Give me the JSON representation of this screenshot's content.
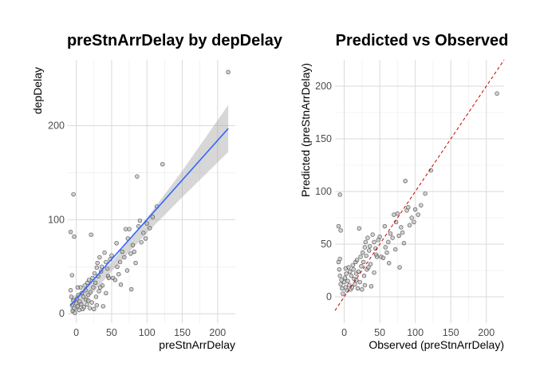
{
  "chart_data": [
    {
      "type": "scatter",
      "title": "preStnArrDelay by depDelay",
      "xlabel": "preStnArrDelay",
      "ylabel": "depDelay",
      "xlim": [
        -12,
        225
      ],
      "ylim": [
        -10,
        270
      ],
      "xticks": [
        0,
        50,
        100,
        150,
        200
      ],
      "yticks": [
        0,
        100,
        200
      ],
      "grid": true,
      "points": [
        [
          -8,
          87
        ],
        [
          -4,
          127
        ],
        [
          -3,
          82
        ],
        [
          -8,
          25
        ],
        [
          -7,
          18
        ],
        [
          -6,
          9
        ],
        [
          -5,
          3
        ],
        [
          -4,
          14
        ],
        [
          -3,
          6
        ],
        [
          -2,
          1
        ],
        [
          0,
          11
        ],
        [
          1,
          16
        ],
        [
          2,
          8
        ],
        [
          3,
          20
        ],
        [
          4,
          4
        ],
        [
          5,
          13
        ],
        [
          6,
          28
        ],
        [
          7,
          10
        ],
        [
          8,
          22
        ],
        [
          9,
          5
        ],
        [
          10,
          18
        ],
        [
          11,
          7
        ],
        [
          12,
          30
        ],
        [
          13,
          25
        ],
        [
          14,
          15
        ],
        [
          15,
          10
        ],
        [
          16,
          33
        ],
        [
          17,
          20
        ],
        [
          18,
          36
        ],
        [
          19,
          6
        ],
        [
          20,
          23
        ],
        [
          21,
          84
        ],
        [
          22,
          12
        ],
        [
          23,
          38
        ],
        [
          24,
          28
        ],
        [
          25,
          5
        ],
        [
          26,
          43
        ],
        [
          27,
          33
        ],
        [
          28,
          18
        ],
        [
          29,
          49
        ],
        [
          30,
          54
        ],
        [
          31,
          40
        ],
        [
          32,
          24
        ],
        [
          33,
          60
        ],
        [
          35,
          45
        ],
        [
          36,
          50
        ],
        [
          37,
          30
        ],
        [
          38,
          8
        ],
        [
          40,
          65
        ],
        [
          42,
          55
        ],
        [
          44,
          48
        ],
        [
          45,
          40
        ],
        [
          46,
          38
        ],
        [
          48,
          58
        ],
        [
          50,
          62
        ],
        [
          52,
          38
        ],
        [
          55,
          36
        ],
        [
          57,
          75
        ],
        [
          58,
          50
        ],
        [
          60,
          42
        ],
        [
          62,
          55
        ],
        [
          65,
          66
        ],
        [
          68,
          60
        ],
        [
          70,
          90
        ],
        [
          72,
          46
        ],
        [
          73,
          80
        ],
        [
          75,
          90
        ],
        [
          77,
          64
        ],
        [
          78,
          26
        ],
        [
          80,
          73
        ],
        [
          82,
          66
        ],
        [
          84,
          54
        ],
        [
          86,
          146
        ],
        [
          88,
          93
        ],
        [
          90,
          99
        ],
        [
          92,
          76
        ],
        [
          95,
          86
        ],
        [
          98,
          80
        ],
        [
          100,
          96
        ],
        [
          104,
          91
        ],
        [
          108,
          103
        ],
        [
          114,
          114
        ],
        [
          122,
          159
        ],
        [
          215,
          257
        ],
        [
          -6,
          41
        ],
        [
          2,
          28
        ],
        [
          17,
          14
        ],
        [
          34,
          28
        ],
        [
          42,
          22
        ],
        [
          63,
          31
        ],
        [
          29,
          9
        ]
      ],
      "fit_line": {
        "x": [
          -8,
          215
        ],
        "y": [
          9,
          197
        ]
      },
      "confidence_band": {
        "x": [
          -8,
          0,
          50,
          100,
          150,
          215
        ],
        "lower": [
          0,
          2,
          45,
          86,
          124,
          172
        ],
        "upper": [
          18,
          20,
          55,
          102,
          152,
          222
        ]
      }
    },
    {
      "type": "scatter",
      "title": "Predicted vs Observed",
      "xlabel": "Observed (preStnArrDelay)",
      "ylabel": "Predicted (preStnArrDelay)",
      "xlim": [
        -13,
        225
      ],
      "ylim": [
        -25,
        225
      ],
      "xticks": [
        0,
        50,
        100,
        150,
        200
      ],
      "yticks": [
        0,
        50,
        100,
        150,
        200
      ],
      "grid": true,
      "points": [
        [
          -8,
          67
        ],
        [
          -6,
          97
        ],
        [
          -5,
          63
        ],
        [
          -8,
          33
        ],
        [
          -7,
          26
        ],
        [
          -6,
          20
        ],
        [
          -5,
          12
        ],
        [
          -4,
          16
        ],
        [
          -3,
          8
        ],
        [
          -2,
          3
        ],
        [
          0,
          14
        ],
        [
          1,
          18
        ],
        [
          2,
          9
        ],
        [
          3,
          22
        ],
        [
          4,
          6
        ],
        [
          5,
          15
        ],
        [
          6,
          28
        ],
        [
          7,
          11
        ],
        [
          8,
          24
        ],
        [
          9,
          7
        ],
        [
          10,
          20
        ],
        [
          11,
          9
        ],
        [
          12,
          30
        ],
        [
          13,
          26
        ],
        [
          14,
          17
        ],
        [
          15,
          12
        ],
        [
          16,
          33
        ],
        [
          17,
          22
        ],
        [
          18,
          35
        ],
        [
          19,
          8
        ],
        [
          20,
          24
        ],
        [
          21,
          65
        ],
        [
          22,
          14
        ],
        [
          23,
          38
        ],
        [
          24,
          29
        ],
        [
          25,
          7
        ],
        [
          26,
          42
        ],
        [
          27,
          33
        ],
        [
          28,
          20
        ],
        [
          29,
          47
        ],
        [
          30,
          52
        ],
        [
          31,
          39
        ],
        [
          32,
          26
        ],
        [
          33,
          56
        ],
        [
          35,
          44
        ],
        [
          36,
          48
        ],
        [
          37,
          31
        ],
        [
          38,
          10
        ],
        [
          40,
          59
        ],
        [
          42,
          52
        ],
        [
          44,
          46
        ],
        [
          45,
          40
        ],
        [
          46,
          38
        ],
        [
          48,
          54
        ],
        [
          50,
          57
        ],
        [
          52,
          38
        ],
        [
          55,
          37
        ],
        [
          57,
          67
        ],
        [
          58,
          47
        ],
        [
          60,
          42
        ],
        [
          62,
          52
        ],
        [
          65,
          60
        ],
        [
          68,
          56
        ],
        [
          70,
          78
        ],
        [
          72,
          45
        ],
        [
          73,
          71
        ],
        [
          75,
          79
        ],
        [
          77,
          58
        ],
        [
          78,
          28
        ],
        [
          80,
          66
        ],
        [
          82,
          61
        ],
        [
          84,
          51
        ],
        [
          86,
          110
        ],
        [
          88,
          82
        ],
        [
          90,
          85
        ],
        [
          92,
          68
        ],
        [
          95,
          75
        ],
        [
          98,
          71
        ],
        [
          100,
          83
        ],
        [
          104,
          78
        ],
        [
          108,
          87
        ],
        [
          114,
          98
        ],
        [
          122,
          120
        ],
        [
          215,
          193
        ],
        [
          -6,
          36
        ],
        [
          2,
          27
        ],
        [
          17,
          16
        ],
        [
          34,
          28
        ],
        [
          42,
          23
        ],
        [
          63,
          32
        ],
        [
          29,
          11
        ]
      ],
      "reference_line": {
        "x": [
          -13,
          225
        ],
        "y": [
          -13,
          225
        ]
      }
    }
  ],
  "colors": {
    "point_fill": "#b3b3b3",
    "point_stroke": "#4d4d4d",
    "fit_line": "#3366ff",
    "band": "#a6a6a6",
    "reference_line": "#cc0000"
  }
}
